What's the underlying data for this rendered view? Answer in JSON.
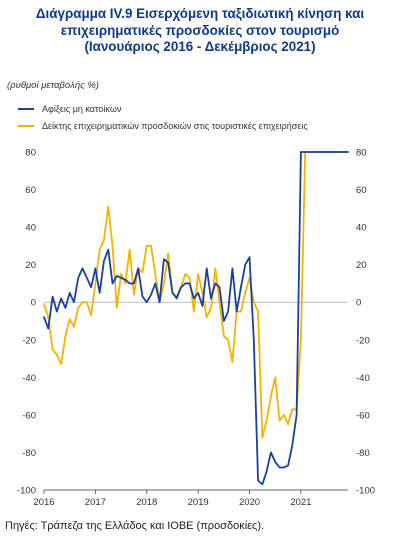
{
  "title_lines": [
    "Διάγραμμα IV.9 Εισερχόμενη ταξιδιωτική κίνηση και",
    "επιχειρηματικές προσδοκίες στον τουρισμό",
    "(Ιανουάριος 2016 - Δεκέμβριος 2021)"
  ],
  "unit_label": "(ρυθμοί μεταβολής %)",
  "source": "Πηγές: Τράπεζα της Ελλάδος και ΙΟΒΕ (προσδοκίες).",
  "colors": {
    "arrivals": "#1a3fa0",
    "expectations": "#f2b400",
    "axis": "#666666"
  },
  "chart_data": {
    "type": "line",
    "title": "Διάγραμμα IV.9 Εισερχόμενη ταξιδιωτική κίνηση και επιχειρηματικές προσδοκίες στον τουρισμό (Ιανουάριος 2016 - Δεκέμβριος 2021)",
    "ylabel": "(ρυθμοί μεταβολής %)",
    "ylim": [
      -100,
      80
    ],
    "y_ticks": [
      "80",
      "60",
      "40",
      "20",
      "0",
      "-20",
      "-40",
      "-60",
      "-80",
      "-100"
    ],
    "y_ticks_right": [
      "80",
      "60",
      "40",
      "20",
      "0",
      "-20",
      "-40",
      "-60",
      "-80",
      "-100"
    ],
    "x_ticks": [
      "2016",
      "2017",
      "2018",
      "2019",
      "2020",
      "2021"
    ],
    "x_tick_index": [
      0,
      12,
      24,
      36,
      48,
      60
    ],
    "x_start": "2016-01",
    "legend_position": "top-left",
    "series": [
      {
        "name": "Αφίξεις μη κατοίκων",
        "values": [
          -8,
          -14,
          3,
          -5,
          2,
          -3,
          5,
          0,
          13,
          18,
          13,
          8,
          18,
          5,
          22,
          28,
          10,
          14,
          13,
          12,
          10,
          10,
          18,
          3,
          0,
          4,
          10,
          0,
          23,
          21,
          5,
          2,
          8,
          10,
          10,
          2,
          5,
          -2,
          18,
          2,
          10,
          8,
          -10,
          -5,
          18,
          -5,
          8,
          20,
          24,
          -20,
          -95,
          -97,
          -90,
          -80,
          -85,
          -88,
          -88,
          -87,
          -76,
          -60,
          80,
          80,
          80,
          80,
          80,
          80,
          80,
          80,
          80,
          80,
          80,
          80
        ]
      },
      {
        "name": "Δείκτης επιχειρηματικών προσδοκιών στις τουριστικές επιχειρήσεις",
        "values": [
          -1,
          -8,
          -25,
          -28,
          -33,
          -18,
          -9,
          -13,
          -3,
          0,
          0,
          -7,
          10,
          28,
          33,
          51,
          30,
          -3,
          15,
          10,
          28,
          4,
          18,
          16,
          30,
          30,
          15,
          0,
          10,
          26,
          5,
          3,
          8,
          15,
          13,
          -5,
          15,
          5,
          -8,
          -3,
          18,
          0,
          -18,
          -20,
          -32,
          -5,
          -5,
          5,
          13,
          0,
          -5,
          -72,
          -63,
          -50,
          -40,
          -63,
          -60,
          -65,
          -57,
          -57,
          -20,
          80,
          80,
          80,
          80,
          80,
          80,
          80,
          80,
          80,
          80,
          80
        ]
      }
    ]
  }
}
